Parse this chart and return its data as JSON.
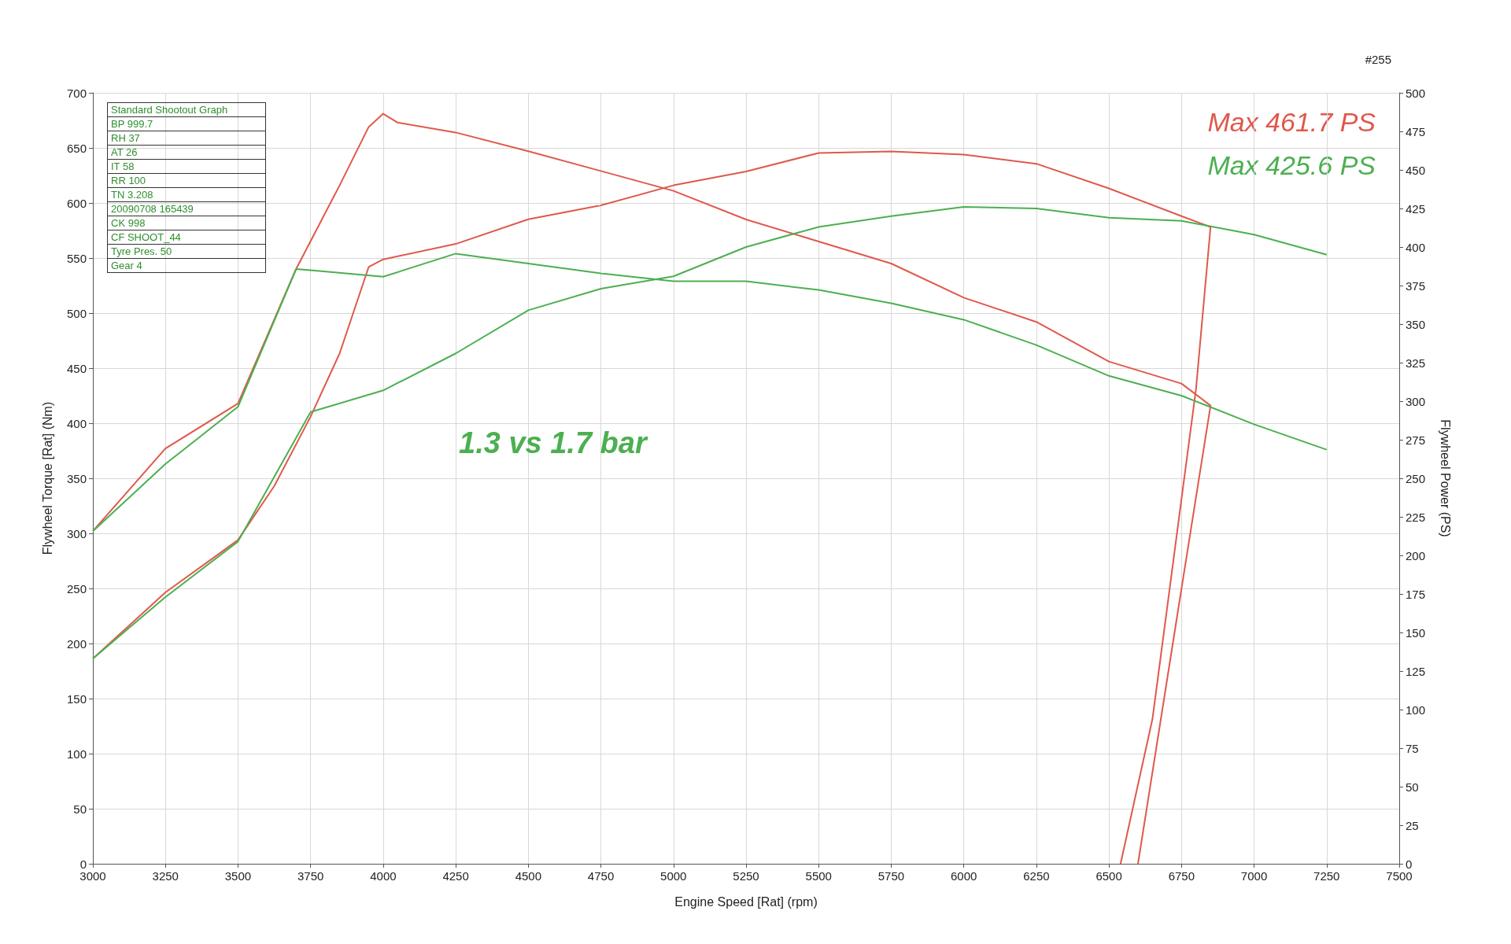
{
  "chart_data": {
    "type": "line",
    "title": "1.3 vs 1.7 bar",
    "xlabel": "Engine Speed [Rat] (rpm)",
    "ylabel": "Flywheel Torque [Rat] (Nm)",
    "y2label": "Flywheel Power (PS)",
    "xlim": [
      3000,
      7500
    ],
    "xticks": [
      3000,
      3250,
      3500,
      3750,
      4000,
      4250,
      4500,
      4750,
      5000,
      5250,
      5500,
      5750,
      6000,
      6250,
      6500,
      6750,
      7000,
      7250,
      7500
    ],
    "ylim": [
      0,
      700
    ],
    "yticks": [
      0,
      50,
      100,
      150,
      200,
      250,
      300,
      350,
      400,
      450,
      500,
      550,
      600,
      650,
      700
    ],
    "y2lim": [
      0,
      500
    ],
    "y2ticks": [
      0,
      25,
      50,
      75,
      100,
      125,
      150,
      175,
      200,
      225,
      250,
      275,
      300,
      325,
      350,
      375,
      400,
      425,
      450,
      475,
      500
    ],
    "grid": true,
    "marker": "none",
    "line_style": "solid",
    "series": [
      {
        "color": "#e0584c",
        "x": [
          3000,
          3250,
          3500,
          3700,
          3850,
          3950,
          4000,
          4050,
          4250,
          4500,
          4750,
          5000,
          5250,
          5500,
          5750,
          6000,
          6250,
          6500,
          6750,
          6850,
          6720,
          6600
        ],
        "values": [
          302,
          377,
          418,
          540,
          616,
          669,
          681,
          673,
          664,
          647,
          629,
          611,
          585,
          565,
          545,
          514,
          492,
          456,
          436,
          416,
          200,
          0
        ]
      },
      {
        "color": "#e0584c",
        "axis": "y2",
        "x": [
          3000,
          3250,
          3500,
          3625,
          3750,
          3850,
          3950,
          4000,
          4250,
          4500,
          4750,
          5000,
          5250,
          5500,
          5750,
          6000,
          6250,
          6500,
          6750,
          6850,
          6800,
          6650,
          6540
        ],
        "values": [
          133,
          176,
          210,
          245,
          290,
          331,
          387,
          392,
          402,
          418,
          427,
          440,
          449,
          461,
          462,
          460,
          454,
          438,
          420,
          413,
          308,
          94,
          0
        ]
      },
      {
        "color": "#4caf50",
        "x": [
          3000,
          3250,
          3500,
          3700,
          3750,
          4000,
          4250,
          4500,
          4750,
          5000,
          5250,
          5500,
          5750,
          6000,
          6250,
          6500,
          6750,
          7000,
          7250
        ],
        "values": [
          302,
          363,
          415,
          540,
          539,
          533,
          554,
          545,
          536,
          529,
          529,
          521,
          509,
          494,
          471,
          443,
          425,
          399,
          376
        ]
      },
      {
        "color": "#4caf50",
        "axis": "y2",
        "x": [
          3000,
          3250,
          3500,
          3750,
          4000,
          4250,
          4500,
          4750,
          5000,
          5250,
          5500,
          5750,
          6000,
          6250,
          6500,
          6750,
          7000,
          7250
        ],
        "values": [
          133,
          173,
          209,
          293,
          307,
          331,
          359,
          373,
          381,
          400,
          413,
          420,
          426,
          425,
          419,
          417,
          408,
          395
        ]
      }
    ],
    "annotations": [
      "#255",
      "Max 461.7 PS",
      "Max 425.6 PS",
      "Standard Shootout Graph",
      "BP 999.7",
      "RH 37",
      "AT 26",
      "IT 58",
      "RR 100",
      "TN 3.208",
      "20090708 165439",
      "CK 998",
      "CF SHOOT_44",
      "Tyre Pres. 50",
      "Gear 4"
    ]
  }
}
